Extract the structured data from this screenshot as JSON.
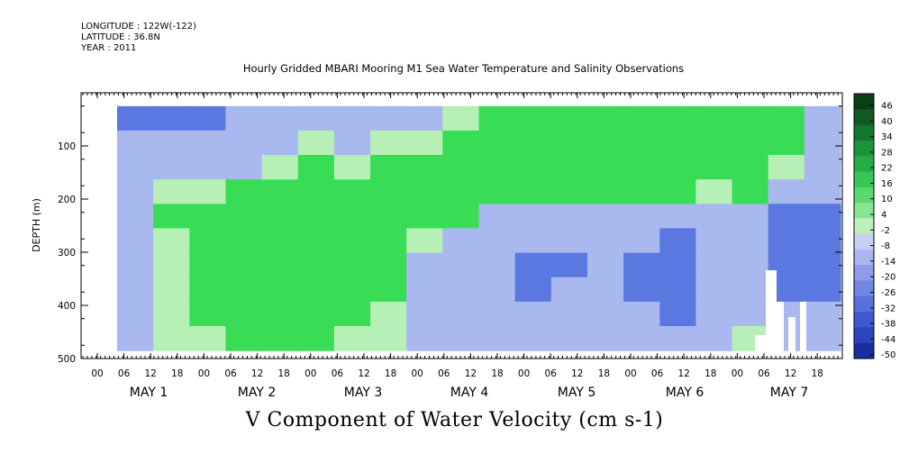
{
  "header": {
    "longitude": "LONGITUDE : 122W(-122)",
    "latitude": "LATITUDE : 36.8N",
    "year": "YEAR : 2011"
  },
  "title": "Hourly Gridded MBARI Mooring M1 Sea Water Temperature and Salinity Observations",
  "bottom_title": "V Component of Water Velocity (cm s-1)",
  "chart_data": {
    "type": "heatmap",
    "title": "Hourly Gridded MBARI Mooring M1 Sea Water Temperature and Salinity Observations",
    "xlabel": "",
    "ylabel": "DEPTH (m)",
    "colorbar_label": "V Component of Water Velocity (cm s-1)",
    "y_range": [
      500,
      0
    ],
    "y_ticks": [
      100,
      200,
      300,
      400,
      500
    ],
    "x_hour_ticks": [
      "00",
      "06",
      "12",
      "18",
      "00",
      "06",
      "12",
      "18",
      "00",
      "06",
      "12",
      "18",
      "00",
      "06",
      "12",
      "18",
      "00",
      "06",
      "12",
      "18",
      "00",
      "06",
      "12",
      "18",
      "00",
      "06",
      "12",
      "18"
    ],
    "x_day_labels": [
      "MAY  1",
      "MAY  2",
      "MAY  3",
      "MAY  4",
      "MAY  5",
      "MAY  6",
      "MAY  7"
    ],
    "data_depth_range": [
      25,
      485
    ],
    "colorbar_levels": [
      "46",
      "40",
      "34",
      "28",
      "22",
      "16",
      "10",
      "4",
      "-2",
      "-8",
      "-14",
      "-20",
      "-26",
      "-32",
      "-38",
      "-44",
      "-50"
    ],
    "colorbar_range": [
      -50,
      52
    ],
    "colors": {
      "strong_negative": "#0a1f78",
      "negative": "#5b78e0",
      "weak_negative": "#aab8f0",
      "weak_positive": "#b6f0b6",
      "positive": "#39dd55",
      "strong_positive": "#0d6b22"
    },
    "columns": [
      {
        "depth_top": 25,
        "values": [
          -14,
          -6,
          -4,
          -6,
          -8,
          -6,
          -4,
          -6,
          -6,
          -8
        ]
      },
      {
        "depth_top": 25,
        "values": [
          -16,
          -6,
          -2,
          4,
          6,
          4,
          0,
          2,
          4,
          2
        ]
      },
      {
        "depth_top": 25,
        "values": [
          -16,
          -8,
          -4,
          4,
          12,
          14,
          10,
          8,
          6,
          4
        ]
      },
      {
        "depth_top": 25,
        "values": [
          -10,
          -6,
          -2,
          6,
          12,
          16,
          14,
          10,
          8,
          6
        ]
      },
      {
        "depth_top": 25,
        "values": [
          -4,
          -2,
          2,
          10,
          14,
          16,
          16,
          14,
          12,
          8
        ]
      },
      {
        "depth_top": 25,
        "values": [
          -2,
          2,
          6,
          12,
          16,
          14,
          14,
          12,
          10,
          6
        ]
      },
      {
        "depth_top": 25,
        "values": [
          -8,
          -4,
          4,
          12,
          16,
          16,
          12,
          10,
          6,
          2
        ]
      },
      {
        "depth_top": 25,
        "values": [
          -6,
          0,
          8,
          14,
          16,
          14,
          10,
          6,
          4,
          2
        ]
      },
      {
        "depth_top": 25,
        "values": [
          -4,
          2,
          8,
          12,
          10,
          4,
          -2,
          -4,
          -4,
          -2
        ]
      },
      {
        "depth_top": 25,
        "values": [
          2,
          8,
          12,
          12,
          6,
          -2,
          -8,
          -10,
          -10,
          -8
        ]
      },
      {
        "depth_top": 25,
        "values": [
          6,
          12,
          16,
          14,
          -2,
          -8,
          -12,
          -12,
          -10,
          -8
        ]
      },
      {
        "depth_top": 25,
        "values": [
          8,
          14,
          18,
          16,
          -4,
          -12,
          -14,
          -14,
          -12,
          -10
        ]
      },
      {
        "depth_top": 25,
        "values": [
          10,
          16,
          18,
          10,
          -8,
          -12,
          -14,
          -12,
          -10,
          -6
        ]
      },
      {
        "depth_top": 25,
        "values": [
          10,
          16,
          18,
          14,
          -6,
          -10,
          -12,
          -10,
          -8,
          -4
        ]
      },
      {
        "depth_top": 25,
        "values": [
          12,
          18,
          20,
          12,
          -8,
          -12,
          -14,
          -14,
          -12,
          -8
        ]
      },
      {
        "depth_top": 25,
        "values": [
          10,
          16,
          16,
          8,
          -10,
          -14,
          -16,
          -16,
          -14,
          -10
        ]
      },
      {
        "depth_top": 25,
        "values": [
          8,
          14,
          12,
          2,
          -10,
          -12,
          -12,
          -12,
          -10,
          -6
        ]
      },
      {
        "depth_top": 25,
        "values": [
          12,
          20,
          18,
          6,
          -6,
          -8,
          -6,
          -4,
          -2,
          0
        ]
      },
      {
        "depth_top": 25,
        "values": [
          6,
          10,
          4,
          -6,
          -14,
          -16,
          -16,
          -14,
          -12,
          -8
        ]
      },
      {
        "depth_top": 25,
        "values": [
          -6,
          -2,
          -6,
          -10,
          -16,
          -18,
          -18,
          -14,
          -8,
          -4
        ],
        "gap": true
      }
    ]
  }
}
